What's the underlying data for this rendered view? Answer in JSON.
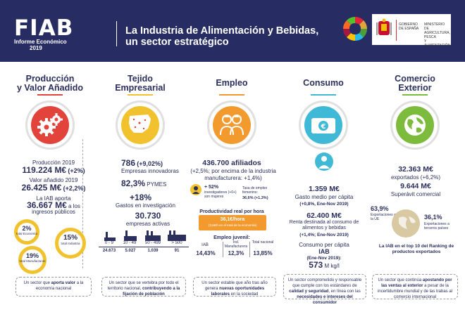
{
  "header": {
    "logo": "FIAB",
    "logo_sub": "Informe Económico",
    "logo_year": "2019",
    "title_line1": "La Industria de Alimentación y Bebidas,",
    "title_line2": "un sector estratégico",
    "gov_text1": "GOBIERNO\nDE ESPAÑA",
    "gov_text2": "MINISTERIO\nDE AGRICULTURA, PESCA\nY ALIMENTACIÓN"
  },
  "colors": {
    "navy": "#272d63",
    "red": "#e2443b",
    "yellow": "#f1c22e",
    "orange": "#f29a2e",
    "cyan": "#3fb9d6",
    "green": "#7dbb3c"
  },
  "produccion": {
    "title1": "Producción",
    "title2": "y Valor Añadido",
    "prod_label": "Producción 2019",
    "prod_value": "119.224 M€",
    "prod_change": "(+2%)",
    "va_label": "Valor añadido 2019",
    "va_value": "26.425 M€",
    "va_change": "(+2,2%)",
    "aporta_label": "La IAB aporta",
    "aporta_value": "36.667 M€",
    "aporta_tail": "a los",
    "aporta_label2": "ingresos públicos",
    "badges": [
      {
        "pct": "2%",
        "label": "total Economía"
      },
      {
        "pct": "15%",
        "label": "total Industria"
      },
      {
        "pct": "19%",
        "label": "total Manufacturas"
      }
    ],
    "foot_a": "Un sector que",
    "foot_b": "aporta valor",
    "foot_c": "a la economía nacional"
  },
  "tejido": {
    "title1": "Tejido",
    "title2": "Empresarial",
    "innov_value": "786",
    "innov_change": "(+9,02%)",
    "innov_label": "Empresas innovadoras",
    "pymes_value": "82,3%",
    "pymes_label": "PYMES",
    "invest_value": "+18%",
    "invest_label": "Gastos en investigación",
    "activas_value": "30.730",
    "activas_label": "empresas activas",
    "sizes": [
      {
        "range": "0 - 9",
        "count": "24.673"
      },
      {
        "range": "10 - 49",
        "count": "5.027"
      },
      {
        "range": "50 - 499",
        "count": "1.039"
      },
      {
        "range": "> 500",
        "count": "91"
      }
    ],
    "foot_a": "Un sector que se vertebra por todo el territorio nacional,",
    "foot_b": "contribuyendo a la fijación de población"
  },
  "empleo": {
    "title": "Empleo",
    "afiliados_value": "436.700 afiliados",
    "afiliados_desc": "(+2,5%; por encima de la industria manufacturera: +1,4%)",
    "invest_pct": "+ 52%",
    "invest_label": "investigadores (+0+) son mujeres",
    "tasa_label": "Tasa de empleo femenino:",
    "tasa_value": "36,6% (+1,3%)",
    "prod_title": "Productividad real por hora",
    "prod_value": "36,1€/hora",
    "prod_note": "(3,6€/h en el total de la economía)",
    "juvenil_title": "Empleo juvenil:",
    "juvenil": [
      {
        "label": "IAB",
        "value": "14,43%"
      },
      {
        "label": "Ind. Manufacturera",
        "value": "12,3%"
      },
      {
        "label": "Total nacional",
        "value": "13,85%"
      }
    ],
    "foot_a": "Un sector estable que año tras año genera",
    "foot_b": "nuevas oportunidades laborales",
    "foot_c": "en la sociedad"
  },
  "consumo": {
    "title": "Consumo",
    "gasto_value": "1.359 M€",
    "gasto_label": "Gasto medio per cápita",
    "gasto_change": "(+0,8%, Ene-Nov 2019)",
    "renta_value": "62.400 M€",
    "renta_label": "Renta destinada al consumo de alimentos y bebidas",
    "renta_change": "(+1,4%; Ene-Nov 2019)",
    "capita_label": "Consumo per cápita",
    "capita_iab": "IAB",
    "capita_period": "(Ene-Nov 2019):",
    "capita_value": "573",
    "capita_unit": "M kg/l",
    "foot_a": "Un sector comprometido y responsable que cumple con los estándares de",
    "foot_b": "calidad y seguridad",
    "foot_c": ", en línea con las",
    "foot_d": "necesidades e intereses del consumidor"
  },
  "comercio": {
    "title1": "Comercio",
    "title2": "Exterior",
    "export_value": "32.363 M€",
    "export_label": "exportados (+6,2%)",
    "superavit_value": "9.644 M€",
    "superavit_label": "Superávit comercial",
    "ue_pct": "63,9%",
    "ue_label": "Exportaciones a la UE",
    "terceros_pct": "36,1%",
    "terceros_label": "Exportaciones a terceros países",
    "ranking": "La IAB en el top 10 del Ranking de productos exportados",
    "foot_a": "Un sector que continúa",
    "foot_b": "apostando por las ventas al exterior",
    "foot_c": "a pesar de la incertidumbre mundial y de las trabas al comercio internacional"
  }
}
